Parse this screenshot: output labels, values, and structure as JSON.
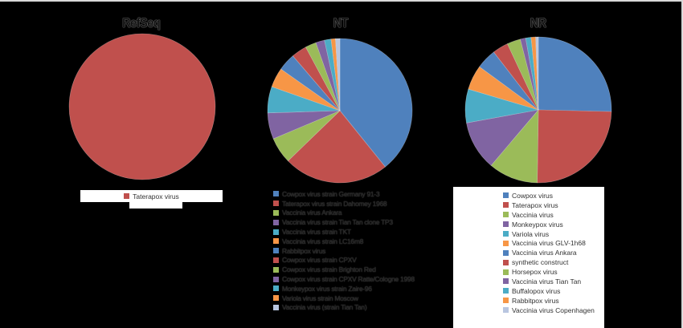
{
  "chart_data": [
    {
      "type": "pie",
      "title": "RefSeq",
      "categories": [
        "Taterapox virus"
      ],
      "values": [
        100
      ],
      "colors": [
        "#C0504D"
      ],
      "legend_position": "bottom"
    },
    {
      "type": "pie",
      "title": "NT",
      "categories": [
        "Cowpox virus strain Germany 91-3",
        "Taterapox virus strain Dahomey 1968",
        "Vaccinia virus Ankara",
        "Vaccinia virus strain Tian Tan clone TP3",
        "Vaccinia virus strain TKT",
        "Vaccinia virus strain LC16m8",
        "Rabbitpox virus",
        "Cowpox virus strain CPXV",
        "Cowpox virus strain Brighton Red",
        "Cowpox virus strain CPXV Ratte/Cologne 1998",
        "Monkeypox virus strain Zaire-96",
        "Variola virus strain Moscow",
        "Vaccinia virus (strain Tian Tan)"
      ],
      "values": [
        40,
        24,
        6,
        6,
        6,
        4.5,
        4,
        3.5,
        2.5,
        2,
        1.5,
        1,
        1
      ],
      "colors": [
        "#4F81BD",
        "#C0504D",
        "#9BBB59",
        "#8064A2",
        "#4BACC6",
        "#F79646",
        "#4F81BD",
        "#C0504D",
        "#9BBB59",
        "#8064A2",
        "#4BACC6",
        "#F79646",
        "#B9C6E0"
      ],
      "legend_position": "bottom"
    },
    {
      "type": "pie",
      "title": "NR",
      "categories": [
        "Cowpox virus",
        "Taterapox virus",
        "Vaccinia virus",
        "Monkeypox virus",
        "Variola virus",
        "Vaccinia virus GLV-1h68",
        "Vaccinia virus Ankara",
        "synthetic construct",
        "Horsepox virus",
        "Vaccinia virus Tian Tan",
        "Buffalopox virus",
        "Rabbitpox virus",
        "Vaccinia virus Copenhagen"
      ],
      "values": [
        25.5,
        25,
        11,
        11,
        7.5,
        5.5,
        4.5,
        3.5,
        3,
        1.2,
        1.2,
        1,
        0.6
      ],
      "colors": [
        "#4F81BD",
        "#C0504D",
        "#9BBB59",
        "#8064A2",
        "#4BACC6",
        "#F79646",
        "#4F81BD",
        "#C0504D",
        "#9BBB59",
        "#8064A2",
        "#4BACC6",
        "#F79646",
        "#B9C6E0"
      ],
      "legend_position": "bottom"
    }
  ],
  "titles": {
    "refseq": "RefSeq",
    "nt": "NT",
    "nr": "NR"
  }
}
